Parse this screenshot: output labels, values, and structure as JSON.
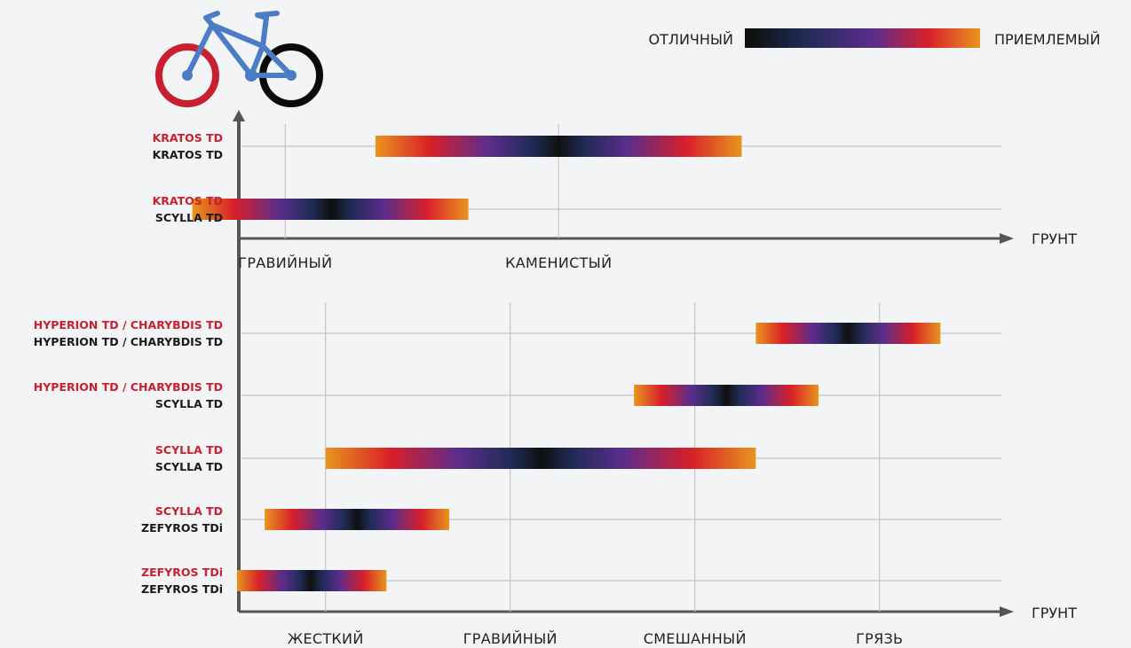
{
  "legend": {
    "left_label": "ОТЛИЧНЫЙ",
    "right_label": "ПРИЕМЛЕМЫЙ",
    "colors": [
      "#e8951e",
      "#d81f2a",
      "#5b2d8c",
      "#1f2b55",
      "#101010"
    ]
  },
  "chart_data": [
    {
      "type": "range-bar",
      "xlabel": "ГРУНТ",
      "categories": [
        "ГРАВИЙНЫЙ",
        "КАМЕНИСТЫЙ"
      ],
      "xlim": [
        0.83,
        3.62
      ],
      "series": [
        {
          "front": "KRATOS TD",
          "rear": "KRATOS TD",
          "start": 1.33,
          "end": 2.67,
          "best": 2.0
        },
        {
          "front": "KRATOS TD",
          "rear": "SCYLLA TD",
          "start": 0.66,
          "end": 1.67,
          "best": 1.17
        }
      ]
    },
    {
      "type": "range-bar",
      "xlabel": "ГРУНТ",
      "categories": [
        "ЖЕСТКИЙ",
        "ГРАВИЙНЫЙ",
        "СМЕШАННЫЙ",
        "ГРЯЗЬ"
      ],
      "xlim": [
        0.53,
        4.66
      ],
      "series": [
        {
          "front": "HYPERION TD / CHARYBDIS TD",
          "rear": "HYPERION TD / CHARYBDIS TD",
          "start": 3.33,
          "end": 4.33,
          "best": 3.83
        },
        {
          "front": "HYPERION TD / CHARYBDIS TD",
          "rear": "SCYLLA TD",
          "start": 2.67,
          "end": 3.67,
          "best": 3.17
        },
        {
          "front": "SCYLLA TD",
          "rear": "SCYLLA TD",
          "start": 1.0,
          "end": 3.33,
          "best": 2.17
        },
        {
          "front": "SCYLLA TD",
          "rear": "ZEFYROS TDi",
          "start": 0.67,
          "end": 1.67,
          "best": 1.17
        },
        {
          "front": "ZEFYROS TDi",
          "rear": "ZEFYROS TDi",
          "start": 0.52,
          "end": 1.33,
          "best": 0.92
        }
      ]
    }
  ]
}
